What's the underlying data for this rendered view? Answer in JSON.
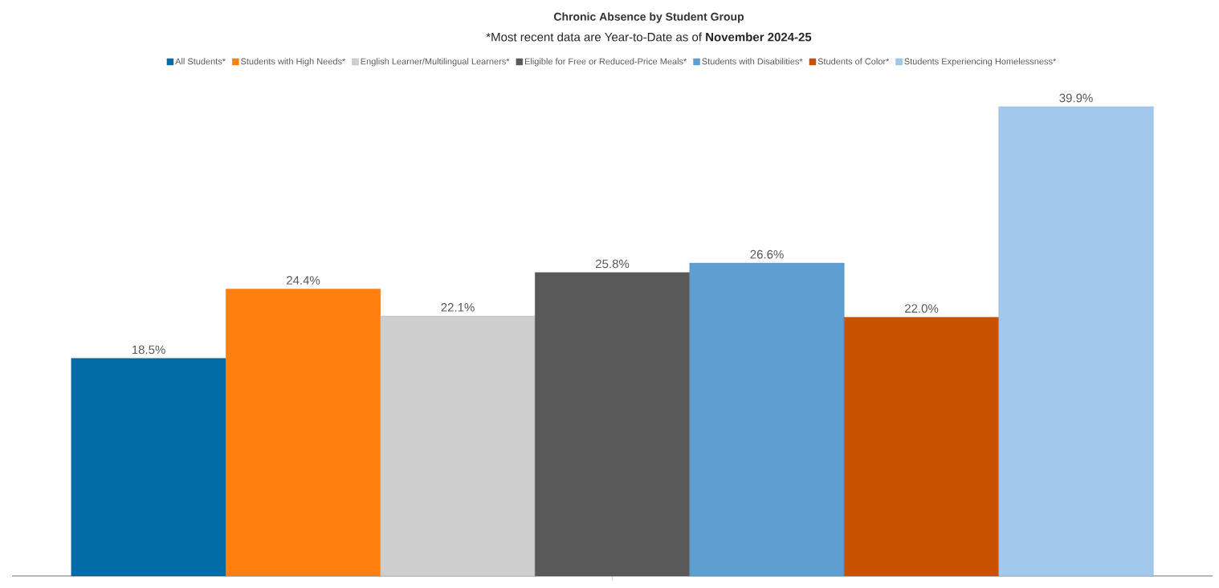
{
  "chart_data": {
    "type": "bar",
    "title": "Chronic Absence by Student Group",
    "subtitle": "*Most recent data are Year-to-Date as of **November 2024-25**",
    "categories": [
      null
    ],
    "series": [
      {
        "name": "All Students*",
        "color": "#006ba4",
        "values": [
          18.5
        ],
        "value_labels": [
          "18.5%"
        ]
      },
      {
        "name": "Students with High Needs*",
        "color": "#ff800e",
        "values": [
          24.4
        ],
        "value_labels": [
          "24.4%"
        ]
      },
      {
        "name": "English Learner/Multilingual Learners*",
        "color": "#cfcfcf",
        "values": [
          22.1
        ],
        "value_labels": [
          "22.1%"
        ]
      },
      {
        "name": "Eligible for Free or Reduced-Price Meals*",
        "color": "#595959",
        "values": [
          25.8
        ],
        "value_labels": [
          "25.8%"
        ]
      },
      {
        "name": "Students with Disabilities*",
        "color": "#5f9ed1",
        "values": [
          26.6
        ],
        "value_labels": [
          "26.6%"
        ]
      },
      {
        "name": "Students of Color*",
        "color": "#c85200",
        "values": [
          22.0
        ],
        "value_labels": [
          "22.0%"
        ]
      },
      {
        "name": "Students Experiencing Homelessness*",
        "color": "#a2c8ec",
        "values": [
          39.9
        ],
        "value_labels": [
          "39.9%"
        ]
      }
    ],
    "legend": "top"
  }
}
